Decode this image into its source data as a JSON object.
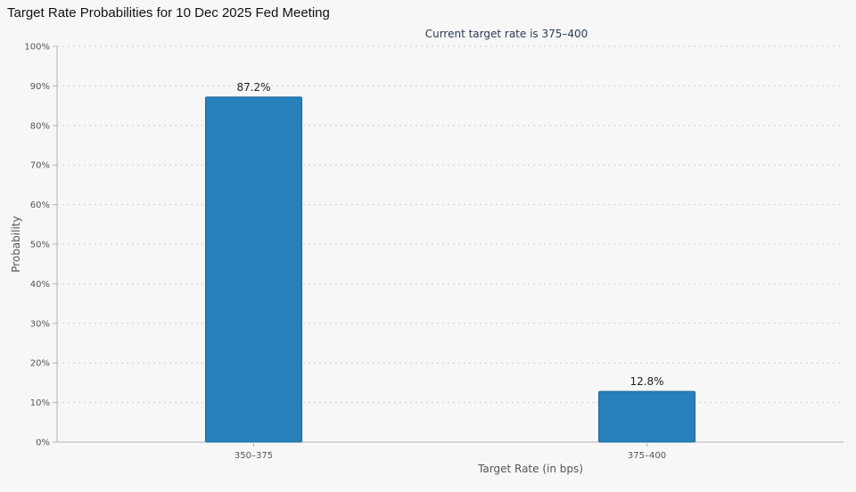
{
  "page": {
    "title": "Target Rate Probabilities for 10 Dec 2025 Fed Meeting"
  },
  "chart_data": {
    "type": "bar",
    "title": "Target Rate Probabilities for 10 Dec 2025 Fed Meeting",
    "subtitle": "Current target rate is 375–400",
    "categories": [
      "350–375",
      "375–400"
    ],
    "values": [
      87.2,
      12.8
    ],
    "data_labels": [
      "87.2%",
      "12.8%"
    ],
    "xlabel": "Target Rate (in bps)",
    "ylabel": "Probability",
    "ylim": [
      0,
      100
    ],
    "yticks": [
      0,
      10,
      20,
      30,
      40,
      50,
      60,
      70,
      80,
      90,
      100
    ],
    "ytick_labels": [
      "0%",
      "10%",
      "20%",
      "30%",
      "40%",
      "50%",
      "60%",
      "70%",
      "80%",
      "90%",
      "100%"
    ],
    "grid": true,
    "legend": "none",
    "bar_color": "#2680ba",
    "bar_edge_color": "#1d6a9c"
  }
}
